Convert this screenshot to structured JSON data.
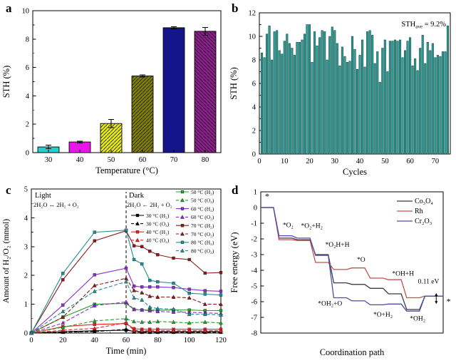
{
  "panels": {
    "a": {
      "letter": "a"
    },
    "b": {
      "letter": "b"
    },
    "c": {
      "letter": "c"
    },
    "d": {
      "letter": "d"
    }
  },
  "chart_data": [
    {
      "panel": "a",
      "type": "bar",
      "xlabel": "Temperature (°C)",
      "ylabel": "STH (%)",
      "ylim": [
        0,
        10
      ],
      "yticks": [
        0,
        2,
        4,
        6,
        8,
        10
      ],
      "categories": [
        "30",
        "40",
        "50",
        "60",
        "70",
        "80"
      ],
      "values": [
        0.4,
        0.75,
        2.05,
        5.4,
        8.8,
        8.55
      ],
      "errors": [
        0.12,
        0.06,
        0.28,
        0.07,
        0.07,
        0.28
      ],
      "bar_colors": [
        "#24cfcf",
        "#e816e8",
        "#e8e812",
        "#7e7e04",
        "#15158a",
        "#8e1d8e"
      ],
      "hatched": [
        false,
        false,
        true,
        true,
        false,
        true
      ],
      "hatch_dir": [
        "",
        "",
        "/",
        "/",
        "",
        "\\"
      ],
      "grid": false
    },
    {
      "panel": "b",
      "type": "bar",
      "xlabel": "Cycles",
      "ylabel": "STH (%)",
      "ylim": [
        0,
        12
      ],
      "yticks": [
        0,
        2,
        4,
        6,
        8,
        10,
        12
      ],
      "xlim": [
        0,
        76
      ],
      "xticks": [
        0,
        10,
        20,
        30,
        40,
        50,
        60,
        70
      ],
      "bar_color": "#2e9d97",
      "annotation": {
        "main": "STH",
        "sub": "ave",
        "rest": " = 9.2%"
      },
      "values": [
        8.6,
        8.2,
        10.2,
        10.9,
        8.0,
        10.4,
        10.5,
        8.8,
        8.5,
        9.6,
        10.2,
        9.4,
        9.0,
        8.4,
        9.5,
        9.5,
        9.7,
        10.2,
        11.0,
        11.0,
        7.8,
        10.4,
        9.2,
        9.9,
        10.5,
        10.4,
        8.0,
        10.0,
        10.8,
        10.5,
        9.4,
        7.5,
        9.1,
        8.3,
        7.8,
        7.9,
        10.0,
        8.9,
        7.2,
        8.4,
        9.7,
        7.4,
        10.4,
        10.5,
        10.1,
        7.7,
        8.7,
        6.1,
        9.0,
        9.7,
        7.0,
        9.6,
        9.6,
        9.7,
        9.6,
        9.7,
        8.2,
        8.8,
        9.6,
        9.9,
        7.5,
        8.1,
        7.1,
        9.0,
        10.1,
        7.7,
        9.5,
        8.8,
        9.4,
        8.2,
        8.4,
        8.3,
        8.7,
        8.7,
        10.9
      ]
    },
    {
      "panel": "c",
      "type": "line",
      "xlabel": "Time (min)",
      "ylabel": "Amount of H₂/O₂ (mmol)",
      "xlim": [
        0,
        120
      ],
      "xticks": [
        0,
        20,
        40,
        60,
        80,
        100,
        120
      ],
      "ylim": [
        0,
        5
      ],
      "yticks": [
        0,
        1,
        2,
        3,
        4,
        5
      ],
      "light_label": "Light",
      "light_equation": "2H₂O ↔ 2H₂ + O₂",
      "dark_label": "Dark",
      "dark_equation": "2H₂O ← 2H₂ + O₂",
      "dark_boundary_min": 60,
      "x": [
        0,
        20,
        40,
        60,
        65,
        70,
        75,
        80,
        90,
        100,
        110,
        120
      ],
      "series": [
        {
          "name": "30 °C (H₂)",
          "color": "#000000",
          "style": "solid",
          "marker": "square",
          "values": [
            0,
            0.05,
            0.08,
            0.1,
            0.06,
            0.05,
            0.05,
            0.05,
            0.05,
            0.05,
            0.05,
            0.05
          ]
        },
        {
          "name": "30 °C (O₂)",
          "color": "#000000",
          "style": "dashed",
          "marker": "triangle",
          "values": [
            0,
            0.03,
            0.05,
            0.13,
            0.04,
            0.03,
            0.03,
            0.03,
            0.03,
            0.03,
            0.03,
            0.03
          ]
        },
        {
          "name": "40 °C (H₂)",
          "color": "#e62222",
          "style": "solid",
          "marker": "square",
          "values": [
            0,
            0.22,
            0.3,
            0.33,
            0.15,
            0.13,
            0.13,
            0.13,
            0.13,
            0.13,
            0.13,
            0.13
          ]
        },
        {
          "name": "40 °C (O₂)",
          "color": "#e62222",
          "style": "dashed",
          "marker": "triangle",
          "values": [
            0,
            0.1,
            0.16,
            0.36,
            0.09,
            0.08,
            0.08,
            0.08,
            0.08,
            0.08,
            0.08,
            0.08
          ]
        },
        {
          "name": "50 °C (H₂)",
          "color": "#23a02a",
          "style": "solid",
          "marker": "square",
          "values": [
            0,
            0.55,
            1.0,
            1.03,
            0.82,
            0.8,
            0.8,
            0.79,
            0.8,
            0.8,
            0.78,
            0.78
          ]
        },
        {
          "name": "50 °C (O₂)",
          "color": "#23a02a",
          "style": "dashed",
          "marker": "triangle",
          "values": [
            0,
            0.2,
            0.42,
            0.5,
            0.4,
            0.38,
            0.38,
            0.4,
            0.38,
            0.35,
            0.38,
            0.35
          ]
        },
        {
          "name": "60 °C (H₂)",
          "color": "#8b2fc9",
          "style": "solid",
          "marker": "square",
          "values": [
            0,
            0.97,
            2.02,
            2.25,
            1.63,
            1.6,
            1.6,
            1.6,
            1.58,
            1.52,
            1.47,
            1.45
          ]
        },
        {
          "name": "60 °C (O₂)",
          "color": "#8b2fc9",
          "style": "dashed",
          "marker": "triangle",
          "values": [
            0,
            0.35,
            0.95,
            1.08,
            0.82,
            0.8,
            0.78,
            0.75,
            0.73,
            0.72,
            0.7,
            0.68
          ]
        },
        {
          "name": "70 °C (H₂)",
          "color": "#8b1a1a",
          "style": "solid",
          "marker": "square",
          "values": [
            0,
            1.85,
            3.2,
            3.55,
            3.03,
            3.0,
            2.84,
            2.72,
            2.6,
            2.55,
            2.08,
            2.1
          ]
        },
        {
          "name": "70 °C (O₂)",
          "color": "#8b1a1a",
          "style": "dashed",
          "marker": "triangle",
          "values": [
            0,
            0.55,
            1.65,
            1.9,
            1.48,
            1.4,
            1.28,
            1.25,
            1.25,
            1.22,
            1.0,
            1.0
          ]
        },
        {
          "name": "80 °C (H₂)",
          "color": "#1f8f8f",
          "style": "solid",
          "marker": "square",
          "values": [
            0,
            2.07,
            3.5,
            3.57,
            2.55,
            2.4,
            1.83,
            1.78,
            1.73,
            1.38,
            1.35,
            1.32
          ]
        },
        {
          "name": "80 °C (O₂)",
          "color": "#1f8f8f",
          "style": "dashed",
          "marker": "triangle",
          "values": [
            0,
            0.75,
            1.45,
            1.78,
            1.22,
            1.15,
            0.9,
            0.85,
            0.83,
            0.65,
            0.65,
            0.63
          ]
        }
      ]
    },
    {
      "panel": "d",
      "type": "line",
      "subtype": "step",
      "xlabel": "Coordination path",
      "ylabel": "Free energy (eV)",
      "ylim": [
        -8,
        1
      ],
      "yticks": [
        1,
        0,
        -1,
        -2,
        -3,
        -4,
        -5,
        -6,
        -7,
        -8
      ],
      "series": [
        {
          "name": "Co₃O₄",
          "color": "#3c3c3c",
          "plateaus": [
            0,
            -1.95,
            -2.05,
            -3.0,
            -4.8,
            -4.9,
            -5.15,
            -5.5,
            -6.5,
            -5.65
          ]
        },
        {
          "name": "Rh",
          "color": "#c0524e",
          "plateaus": [
            0,
            -2.05,
            -2.1,
            -3.5,
            -3.95,
            -3.85,
            -4.5,
            -4.6,
            -5.75,
            -5.64
          ]
        },
        {
          "name": "Cr₂O₃",
          "color": "#4c4cac",
          "plateaus": [
            0,
            -1.8,
            -1.95,
            -3.05,
            -5.75,
            -5.95,
            -6.2,
            -6.15,
            -6.6,
            -5.65
          ]
        }
      ],
      "annotations": [
        {
          "x": 0.035,
          "y": 0.55,
          "text": "*"
        },
        {
          "x": 0.15,
          "y": -1.25,
          "text": "*O₂"
        },
        {
          "x": 0.28,
          "y": -1.3,
          "text": "*O₂+H₂"
        },
        {
          "x": 0.42,
          "y": -2.5,
          "text": "*O₂H+H"
        },
        {
          "x": 0.55,
          "y": -3.45,
          "text": "*O"
        },
        {
          "x": 0.78,
          "y": -4.35,
          "text": "*OH+H"
        },
        {
          "x": 0.38,
          "y": -6.25,
          "text": "*OH₂+O"
        },
        {
          "x": 0.67,
          "y": -6.95,
          "text": "*O+H₂"
        },
        {
          "x": 0.86,
          "y": -7.2,
          "text": "*OH₂"
        },
        {
          "x": 0.92,
          "y": -4.85,
          "text": "0.11 eV"
        },
        {
          "x": 1.03,
          "y": -6.15,
          "text": "*"
        }
      ]
    }
  ]
}
